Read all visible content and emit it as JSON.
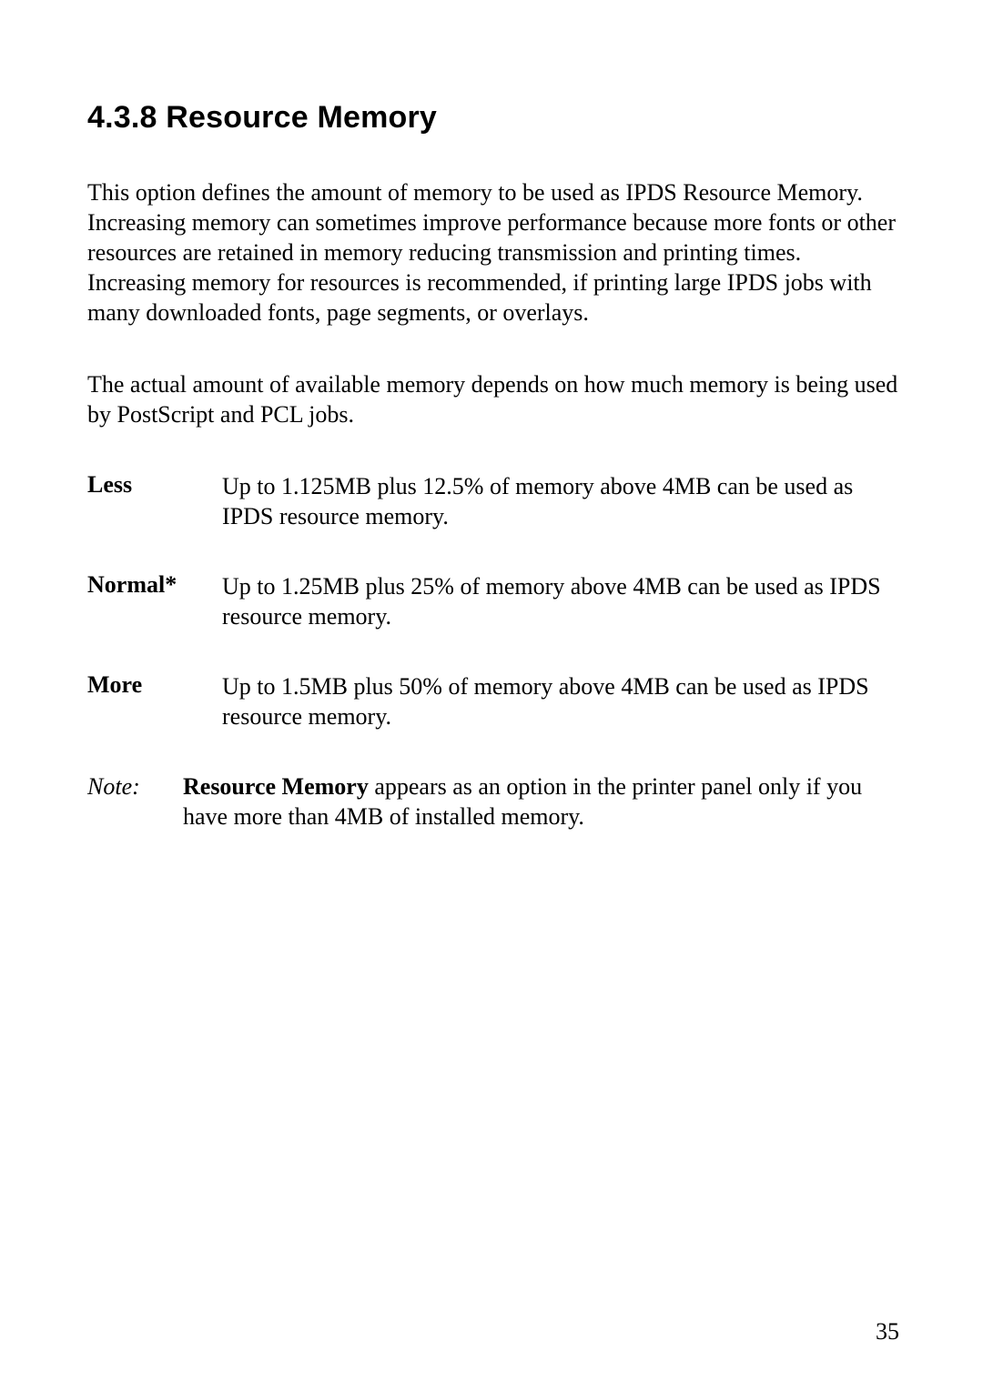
{
  "section": {
    "number": "4.3.8",
    "title": "Resource Memory",
    "heading": "4.3.8 Resource Memory"
  },
  "paragraphs": {
    "p1": "This option defines the amount of memory to be used as IPDS Resource Memory. Increasing memory can sometimes improve performance because more fonts or other resources are retained in memory reducing transmission and printing times. Increasing memory for resources is recommended, if printing large IPDS jobs with many downloaded fonts, page segments, or overlays.",
    "p2": "The actual amount of available memory depends on how much memory is being used by PostScript and PCL jobs."
  },
  "definitions": [
    {
      "term": "Less",
      "desc": "Up to 1.125MB plus 12.5% of memory above 4MB can be used as IPDS resource memory."
    },
    {
      "term": "Normal*",
      "desc": "Up to 1.25MB plus 25% of memory above 4MB can be used as IPDS resource memory."
    },
    {
      "term": "More",
      "desc": "Up to 1.5MB plus 50% of memory above 4MB can be used as IPDS resource memory."
    }
  ],
  "note": {
    "label": "Note:",
    "strong": "Resource Memory",
    "rest": " appears as an option in the printer panel only if you have more than 4MB of installed memory."
  },
  "page_number": "35"
}
